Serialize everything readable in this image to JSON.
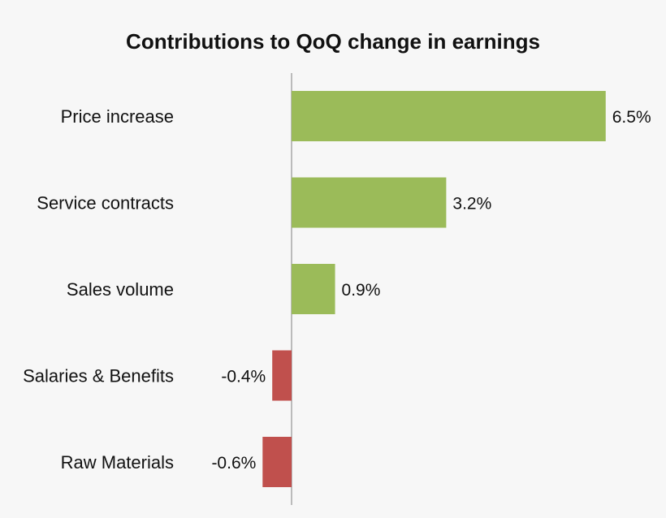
{
  "chart_data": {
    "type": "bar",
    "orientation": "horizontal",
    "title": "Contributions to QoQ change in earnings",
    "categories": [
      "Price increase",
      "Service contracts",
      "Sales volume",
      "Salaries & Benefits",
      "Raw Materials"
    ],
    "values": [
      6.5,
      3.2,
      0.9,
      -0.4,
      -0.6
    ],
    "value_labels": [
      "6.5%",
      "3.2%",
      "0.9%",
      "-0.4%",
      "-0.6%"
    ],
    "unit": "%",
    "xlim": [
      -0.6,
      6.5
    ],
    "grid": false,
    "legend": "none",
    "colors": {
      "positive": "#9bbb59",
      "negative": "#c0504d",
      "axis": "#7f7f7f"
    }
  }
}
